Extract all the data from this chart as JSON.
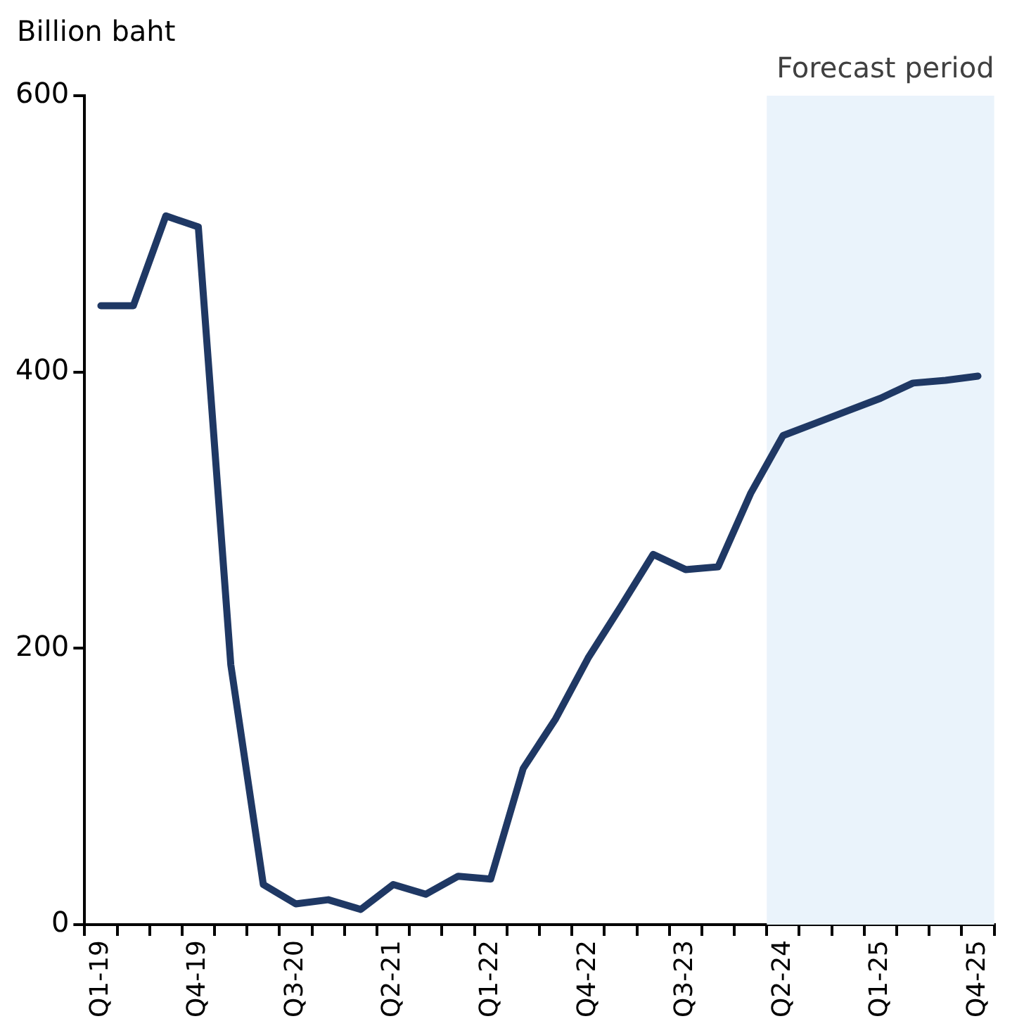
{
  "chart_data": {
    "type": "line",
    "ylabel": "Billion baht",
    "categories": [
      "Q1-19",
      null,
      null,
      "Q4-19",
      null,
      null,
      "Q3-20",
      null,
      null,
      "Q2-21",
      null,
      null,
      "Q1-22",
      null,
      null,
      "Q4-22",
      null,
      null,
      "Q3-23",
      null,
      null,
      "Q2-24",
      null,
      null,
      "Q1-25",
      null,
      null,
      "Q4-25"
    ],
    "series": [
      {
        "color": "#1f3864",
        "values": [
          448,
          448,
          513,
          505,
          188,
          29,
          15,
          18,
          11,
          29,
          22,
          35,
          33,
          113,
          149,
          193,
          230,
          268,
          257,
          259,
          312,
          354,
          363,
          372,
          381,
          392,
          394,
          397
        ]
      }
    ],
    "ylim": [
      0,
      600
    ],
    "yticks": [
      0,
      200,
      400,
      600
    ],
    "grid": false,
    "legend": false,
    "marker": "none",
    "line_style": "solid",
    "bands": [
      {
        "axis": "x",
        "from": "Q2-24",
        "to": "Q4-25",
        "label": "Forecast period",
        "color": "#eaf3fb"
      }
    ]
  }
}
